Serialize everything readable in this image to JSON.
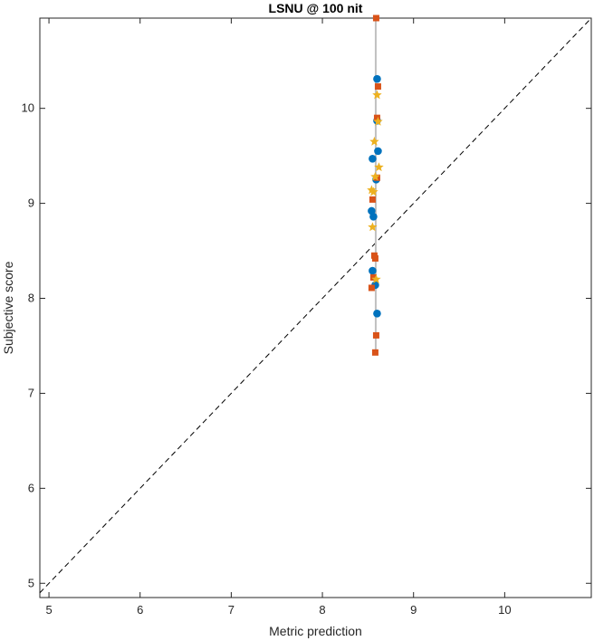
{
  "chart_data": {
    "type": "scatter",
    "title": "LSNU @ 100 nit",
    "xlabel": "Metric prediction",
    "ylabel": "Subjective score",
    "xlim": [
      4.9,
      10.95
    ],
    "ylim": [
      4.85,
      10.95
    ],
    "xticks": [
      "5",
      "6",
      "7",
      "8",
      "9",
      "10"
    ],
    "yticks": [
      "5",
      "6",
      "7",
      "8",
      "9",
      "10"
    ],
    "grid": false,
    "box": true,
    "identity_line": {
      "style": "dashed",
      "color": "#000000"
    },
    "error_bar": {
      "x": 8.585,
      "y_low": 7.42,
      "y_high": 10.95,
      "color": "#c0c0c0"
    },
    "series": [
      {
        "marker": "circle",
        "color": "#0072BD",
        "points": [
          [
            8.6,
            10.31
          ],
          [
            8.6,
            9.87
          ],
          [
            8.61,
            9.55
          ],
          [
            8.55,
            9.47
          ],
          [
            8.59,
            9.25
          ],
          [
            8.54,
            8.92
          ],
          [
            8.56,
            8.86
          ],
          [
            8.55,
            8.29
          ],
          [
            8.58,
            8.14
          ],
          [
            8.6,
            7.84
          ]
        ]
      },
      {
        "marker": "square",
        "color": "#D95319",
        "points": [
          [
            8.59,
            10.95
          ],
          [
            8.61,
            10.23
          ],
          [
            8.6,
            9.9
          ],
          [
            8.6,
            9.27
          ],
          [
            8.55,
            9.04
          ],
          [
            8.57,
            8.45
          ],
          [
            8.58,
            8.42
          ],
          [
            8.56,
            8.22
          ],
          [
            8.54,
            8.11
          ],
          [
            8.59,
            7.61
          ],
          [
            8.58,
            7.43
          ]
        ]
      },
      {
        "marker": "star",
        "color": "#EDB120",
        "points": [
          [
            8.6,
            10.14
          ],
          [
            8.61,
            9.86
          ],
          [
            8.57,
            9.65
          ],
          [
            8.62,
            9.38
          ],
          [
            8.58,
            9.28
          ],
          [
            8.54,
            9.14
          ],
          [
            8.56,
            9.12
          ],
          [
            8.55,
            8.75
          ],
          [
            8.59,
            8.2
          ]
        ]
      }
    ]
  }
}
